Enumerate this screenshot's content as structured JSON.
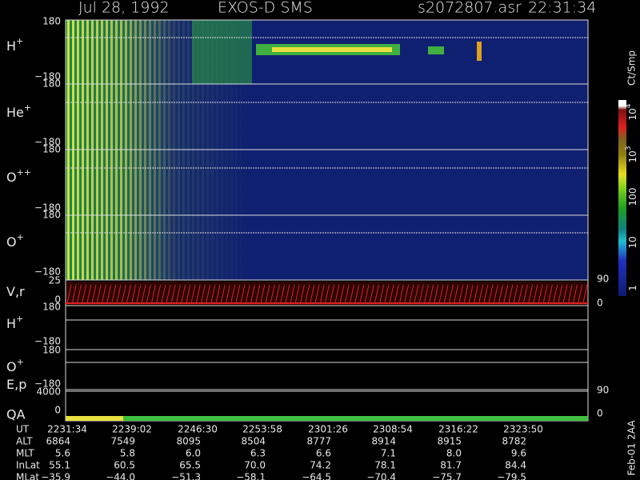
{
  "header": {
    "date": "Jul 28, 1992",
    "instrument": "EXOS-D SMS",
    "file": "s2072807.asr",
    "time": "22:31:34"
  },
  "panels": [
    {
      "label": {
        "base": "H",
        "sup": "+"
      },
      "top": "180",
      "bottom": "−180"
    },
    {
      "label": {
        "base": "He",
        "sup": "+"
      },
      "top": "180",
      "bottom": "−180"
    },
    {
      "label": {
        "base": "O",
        "sup": "++"
      },
      "top": "180",
      "bottom": "−180"
    },
    {
      "label": {
        "base": "O",
        "sup": "+"
      },
      "top": "180",
      "bottom": "−180"
    },
    {
      "label": {
        "base": "V,r",
        "sup": ""
      },
      "top": "25",
      "bottom": "0",
      "right_top": "90",
      "right_bottom": "0"
    },
    {
      "label": {
        "base": "H",
        "sup": "+"
      },
      "top": "180",
      "bottom": "−180"
    },
    {
      "label": {
        "base": "O",
        "sup": "+"
      },
      "top": "180",
      "bottom": "−180"
    },
    {
      "label": {
        "base": "E,p",
        "sup": ""
      },
      "top": "4000",
      "bottom": "0",
      "right_top": "90",
      "right_bottom": "0"
    }
  ],
  "qa_label": "QA",
  "colorbar": {
    "unit": "Ct/Smp",
    "ticks": [
      {
        "base": "10",
        "sup": "4"
      },
      {
        "base": "10",
        "sup": "3"
      },
      {
        "base": "100",
        "sup": ""
      },
      {
        "base": "10",
        "sup": ""
      },
      {
        "base": "1",
        "sup": ""
      }
    ]
  },
  "footer": {
    "rows": [
      {
        "label": "UT",
        "values": [
          "2231:34",
          "2239:02",
          "2246:30",
          "2253:58",
          "2301:26",
          "2308:54",
          "2316:22",
          "2323:50"
        ]
      },
      {
        "label": "ALT",
        "values": [
          "6864",
          "7549",
          "8095",
          "8504",
          "8777",
          "8914",
          "8915",
          "8782"
        ]
      },
      {
        "label": "MLT",
        "values": [
          "5.6",
          "5.8",
          "6.0",
          "6.3",
          "6.6",
          "7.1",
          "8.0",
          "9.6"
        ]
      },
      {
        "label": "InLat",
        "values": [
          "55.1",
          "60.5",
          "65.5",
          "70.0",
          "74.2",
          "78.1",
          "81.7",
          "84.4"
        ]
      },
      {
        "label": "MLat",
        "values": [
          "−35.9",
          "−44.0",
          "−51.3",
          "−58.1",
          "−64.5",
          "−70.4",
          "−75.7",
          "−79.5"
        ]
      }
    ]
  },
  "stamp": "Feb-01 2AA"
}
